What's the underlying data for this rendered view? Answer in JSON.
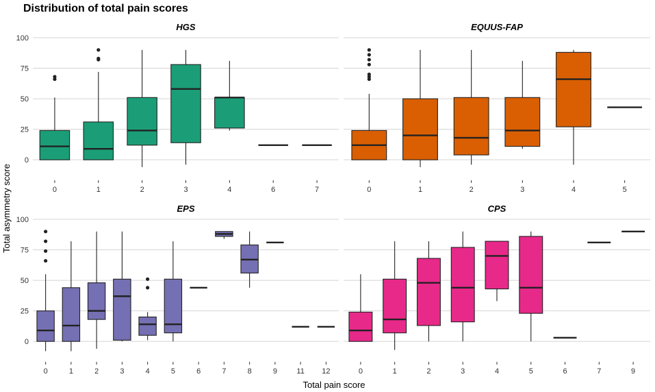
{
  "title": "Distribution of total pain scores",
  "xlabel": "Total pain score",
  "ylabel": "Total asymmetry score",
  "chart_data": [
    {
      "type": "boxplot",
      "title": "HGS",
      "color": "#1b9e77",
      "ylim": [
        -10,
        100
      ],
      "yticks": [
        "0",
        "25",
        "50",
        "75",
        "100"
      ],
      "categories": [
        "0",
        "1",
        "2",
        "3",
        "4",
        "6",
        "7"
      ],
      "boxes": [
        {
          "min": 0,
          "q1": 0,
          "median": 11,
          "q3": 24,
          "max": 51,
          "outliers": [
            66,
            68
          ]
        },
        {
          "min": 0,
          "q1": 0,
          "median": 9,
          "q3": 31,
          "max": 72,
          "outliers": [
            82,
            83,
            90
          ]
        },
        {
          "min": -6,
          "q1": 12,
          "median": 24,
          "q3": 51,
          "max": 90,
          "outliers": []
        },
        {
          "min": -4,
          "q1": 14,
          "median": 58,
          "q3": 78,
          "max": 90,
          "outliers": []
        },
        {
          "min": 24,
          "q1": 26,
          "median": 51,
          "q3": 51,
          "max": 81,
          "outliers": []
        },
        {
          "min": 12,
          "q1": 12,
          "median": 12,
          "q3": 12,
          "max": 12,
          "outliers": []
        },
        {
          "min": 12,
          "q1": 12,
          "median": 12,
          "q3": 12,
          "max": 12,
          "outliers": []
        }
      ]
    },
    {
      "type": "boxplot",
      "title": "EQUUS-FAP",
      "color": "#d95f02",
      "ylim": [
        -10,
        100
      ],
      "yticks": [
        "0",
        "25",
        "50",
        "75",
        "100"
      ],
      "categories": [
        "0",
        "1",
        "2",
        "3",
        "4",
        "5"
      ],
      "boxes": [
        {
          "min": 0,
          "q1": 0,
          "median": 12,
          "q3": 24,
          "max": 54,
          "outliers": [
            66,
            68,
            70,
            78,
            82,
            86,
            90
          ]
        },
        {
          "min": -6,
          "q1": 0,
          "median": 20,
          "q3": 50,
          "max": 90,
          "outliers": []
        },
        {
          "min": -4,
          "q1": 4,
          "median": 18,
          "q3": 51,
          "max": 90,
          "outliers": []
        },
        {
          "min": 9,
          "q1": 11,
          "median": 24,
          "q3": 51,
          "max": 81,
          "outliers": []
        },
        {
          "min": -4,
          "q1": 27,
          "median": 66,
          "q3": 88,
          "max": 90,
          "outliers": []
        },
        {
          "min": 43,
          "q1": 43,
          "median": 43,
          "q3": 43,
          "max": 43,
          "outliers": []
        }
      ]
    },
    {
      "type": "boxplot",
      "title": "EPS",
      "color": "#7570b3",
      "ylim": [
        -10,
        100
      ],
      "yticks": [
        "0",
        "25",
        "50",
        "75",
        "100"
      ],
      "categories": [
        "0",
        "1",
        "2",
        "3",
        "4",
        "5",
        "6",
        "7",
        "8",
        "9",
        "11",
        "12"
      ],
      "boxes": [
        {
          "min": -8,
          "q1": 0,
          "median": 9,
          "q3": 25,
          "max": 55,
          "outliers": [
            66,
            74,
            82,
            90
          ]
        },
        {
          "min": -8,
          "q1": 0,
          "median": 13,
          "q3": 44,
          "max": 82,
          "outliers": []
        },
        {
          "min": -6,
          "q1": 18,
          "median": 25,
          "q3": 48,
          "max": 90,
          "outliers": []
        },
        {
          "min": 0,
          "q1": 1,
          "median": 37,
          "q3": 51,
          "max": 90,
          "outliers": []
        },
        {
          "min": 1,
          "q1": 5,
          "median": 14,
          "q3": 20,
          "max": 24,
          "outliers": [
            44,
            51
          ]
        },
        {
          "min": 0,
          "q1": 7,
          "median": 14,
          "q3": 51,
          "max": 82,
          "outliers": []
        },
        {
          "min": 44,
          "q1": 44,
          "median": 44,
          "q3": 44,
          "max": 44,
          "outliers": []
        },
        {
          "min": 84,
          "q1": 86,
          "median": 88,
          "q3": 90,
          "max": 90,
          "outliers": []
        },
        {
          "min": 44,
          "q1": 56,
          "median": 67,
          "q3": 79,
          "max": 90,
          "outliers": []
        },
        {
          "min": 81,
          "q1": 81,
          "median": 81,
          "q3": 81,
          "max": 81,
          "outliers": []
        },
        {
          "min": 12,
          "q1": 12,
          "median": 12,
          "q3": 12,
          "max": 12,
          "outliers": []
        },
        {
          "min": 12,
          "q1": 12,
          "median": 12,
          "q3": 12,
          "max": 12,
          "outliers": []
        }
      ]
    },
    {
      "type": "boxplot",
      "title": "CPS",
      "color": "#e7298a",
      "ylim": [
        -10,
        100
      ],
      "yticks": [
        "0",
        "25",
        "50",
        "75",
        "100"
      ],
      "categories": [
        "0",
        "1",
        "2",
        "3",
        "4",
        "5",
        "6",
        "7",
        "9"
      ],
      "boxes": [
        {
          "min": 0,
          "q1": 0,
          "median": 9,
          "q3": 24,
          "max": 55,
          "outliers": []
        },
        {
          "min": -7,
          "q1": 7,
          "median": 18,
          "q3": 51,
          "max": 82,
          "outliers": []
        },
        {
          "min": 0,
          "q1": 13,
          "median": 48,
          "q3": 68,
          "max": 82,
          "outliers": []
        },
        {
          "min": 0,
          "q1": 16,
          "median": 44,
          "q3": 77,
          "max": 90,
          "outliers": []
        },
        {
          "min": 33,
          "q1": 43,
          "median": 70,
          "q3": 82,
          "max": 82,
          "outliers": []
        },
        {
          "min": 0,
          "q1": 23,
          "median": 44,
          "q3": 86,
          "max": 90,
          "outliers": []
        },
        {
          "min": 3,
          "q1": 3,
          "median": 3,
          "q3": 3,
          "max": 3,
          "outliers": []
        },
        {
          "min": 81,
          "q1": 81,
          "median": 81,
          "q3": 81,
          "max": 81,
          "outliers": []
        },
        {
          "min": 90,
          "q1": 90,
          "median": 90,
          "q3": 90,
          "max": 90,
          "outliers": []
        }
      ]
    }
  ]
}
